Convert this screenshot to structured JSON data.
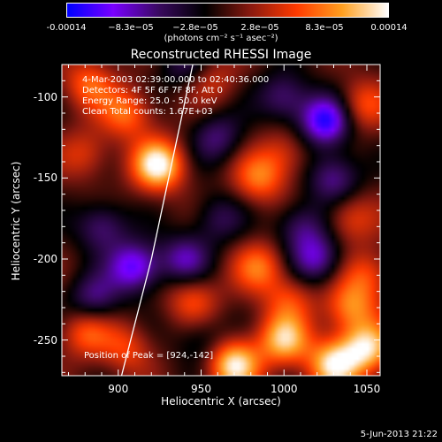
{
  "colorbar": {
    "tick_labels": [
      "-0.00014",
      "−8.3e−05",
      "−2.8e−05",
      "2.8e−05",
      "8.3e−05",
      "0.00014"
    ],
    "units": "(photons cm⁻² s⁻¹ asec⁻²)"
  },
  "chart_data": {
    "type": "heatmap",
    "title": "Reconstructed RHESSI Image",
    "xlabel": "Heliocentric X (arcsec)",
    "ylabel": "Heliocentric Y (arcsec)",
    "xlim": [
      866,
      1058
    ],
    "ylim": [
      -272,
      -80
    ],
    "x_ticks": [
      "900",
      "950",
      "1000",
      "1050"
    ],
    "y_ticks": [
      "-100",
      "-150",
      "-200",
      "-250"
    ],
    "value_range": [
      -0.00014,
      0.00014
    ],
    "colormap": [
      "#0000ff",
      "#7a00ff",
      "#3a0a60",
      "#000000",
      "#8a1a10",
      "#ff3a00",
      "#ffa020",
      "#ffffff"
    ],
    "sources": [
      {
        "x": 924,
        "y": -142,
        "v": 1.0
      },
      {
        "x": 905,
        "y": -110,
        "v": 0.55
      },
      {
        "x": 882,
        "y": -92,
        "v": 0.5
      },
      {
        "x": 880,
        "y": -135,
        "v": 0.35
      },
      {
        "x": 957,
        "y": -90,
        "v": 0.3
      },
      {
        "x": 985,
        "y": -150,
        "v": 0.55
      },
      {
        "x": 1000,
        "y": -135,
        "v": 0.35
      },
      {
        "x": 1047,
        "y": -105,
        "v": 0.45
      },
      {
        "x": 1040,
        "y": -175,
        "v": 0.4
      },
      {
        "x": 880,
        "y": -245,
        "v": 0.5
      },
      {
        "x": 905,
        "y": -255,
        "v": 0.4
      },
      {
        "x": 985,
        "y": -205,
        "v": 0.55
      },
      {
        "x": 1003,
        "y": -225,
        "v": 0.4
      },
      {
        "x": 1040,
        "y": -230,
        "v": 0.6
      },
      {
        "x": 1050,
        "y": -255,
        "v": 0.85
      },
      {
        "x": 1000,
        "y": -250,
        "v": 0.8
      },
      {
        "x": 970,
        "y": -265,
        "v": 0.95
      },
      {
        "x": 1030,
        "y": -265,
        "v": 0.9
      },
      {
        "x": 945,
        "y": -225,
        "v": 0.45
      },
      {
        "x": 1050,
        "y": -210,
        "v": 0.45
      },
      {
        "x": 1025,
        "y": -115,
        "v": -0.9
      },
      {
        "x": 1030,
        "y": -150,
        "v": -0.55
      },
      {
        "x": 1000,
        "y": -100,
        "v": -0.5
      },
      {
        "x": 910,
        "y": -205,
        "v": -0.8
      },
      {
        "x": 890,
        "y": -180,
        "v": -0.5
      },
      {
        "x": 940,
        "y": -200,
        "v": -0.55
      },
      {
        "x": 885,
        "y": -225,
        "v": -0.5
      },
      {
        "x": 1020,
        "y": -200,
        "v": -0.6
      },
      {
        "x": 960,
        "y": -175,
        "v": -0.35
      },
      {
        "x": 960,
        "y": -125,
        "v": -0.45
      },
      {
        "x": 940,
        "y": -80,
        "v": -0.35
      },
      {
        "x": 1010,
        "y": -180,
        "v": -0.45
      },
      {
        "x": 950,
        "y": -250,
        "v": -0.3
      }
    ],
    "limb": [
      [
        945,
        -80
      ],
      [
        920,
        -200
      ],
      [
        902,
        -272
      ]
    ]
  },
  "info": {
    "time_range": "4-Mar-2003 02:39:00.000  to 02:40:36.000",
    "detectors": "Detectors: 4F 5F 6F 7F 8F, Att 0",
    "energy": "Energy Range: 25.0 - 50.0 keV",
    "clean": "Clean     Total counts: 1.67E+03"
  },
  "peak": "Position of Peak = [924,-142]",
  "timestamp": "5-Jun-2013 21:22"
}
